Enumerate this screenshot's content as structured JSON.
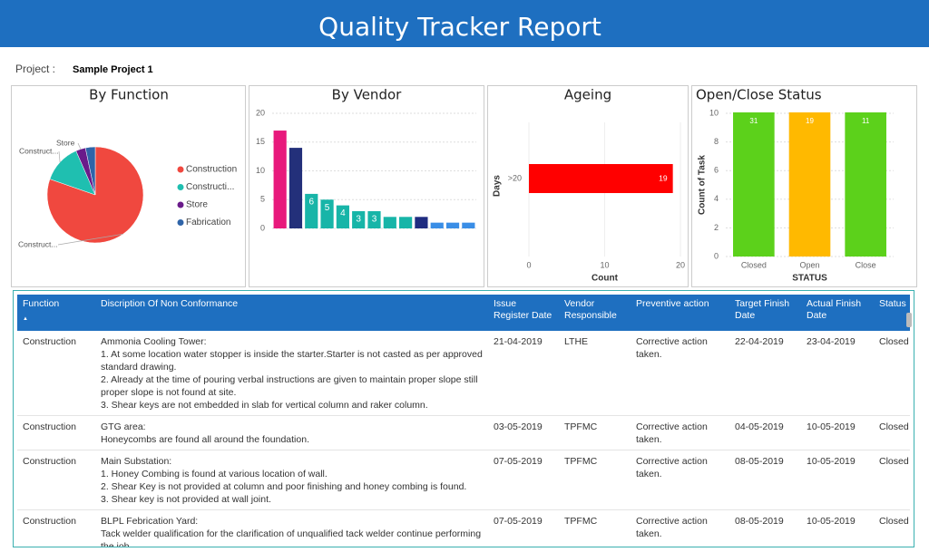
{
  "header": {
    "title": "Quality Tracker Report"
  },
  "project": {
    "label": "Project :",
    "value": "Sample Project 1"
  },
  "chart_data": [
    {
      "type": "pie",
      "title": "By Function",
      "categories": [
        "Construction",
        "Constructi...",
        "Store",
        "Fabrication"
      ],
      "values": [
        49,
        8,
        2,
        2
      ],
      "colors": [
        "#f0483f",
        "#1fbfb0",
        "#6a1b8a",
        "#2f64a8"
      ],
      "slice_labels": [
        "Construct...",
        "Construct...",
        "Store",
        null
      ],
      "legend": "right"
    },
    {
      "type": "bar",
      "title": "By Vendor",
      "categories": [
        null,
        null,
        null,
        null,
        null,
        null,
        null,
        null,
        null,
        null,
        null,
        null,
        null
      ],
      "values": [
        17,
        14,
        6,
        5,
        4,
        3,
        3,
        2,
        2,
        2,
        1,
        1,
        1
      ],
      "value_labels": [
        null,
        null,
        "6",
        "5",
        "4",
        "3",
        "3",
        null,
        null,
        null,
        null,
        null,
        null
      ],
      "colors": [
        "#e8197c",
        "#23307a",
        "#17b5a8",
        "#17b5a8",
        "#17b5a8",
        "#17b5a8",
        "#17b5a8",
        "#17b5a8",
        "#17b5a8",
        "#1f2c80",
        "#3a8ee6",
        "#3a8ee6",
        "#3a8ee6"
      ],
      "ylim": [
        0,
        20
      ],
      "yticks": [
        0,
        5,
        10,
        15,
        20
      ],
      "grid": true
    },
    {
      "type": "bar",
      "orientation": "horizontal",
      "title": "Ageing",
      "categories": [
        ">20"
      ],
      "values": [
        19
      ],
      "value_labels": [
        "19"
      ],
      "color": "#ff0000",
      "xlim": [
        0,
        20
      ],
      "xticks": [
        0,
        10,
        20
      ],
      "x_label": "Count",
      "y_label": "Days",
      "grid": true
    },
    {
      "type": "bar",
      "title": "Open/Close Status",
      "categories": [
        "Closed",
        "Open",
        "Close"
      ],
      "values": [
        31,
        19,
        11
      ],
      "value_labels": [
        "31",
        "19",
        "11"
      ],
      "colors": [
        "#5cd11b",
        "#ffb900",
        "#5cd11b"
      ],
      "ylim": [
        0,
        10
      ],
      "yticks": [
        0,
        2,
        4,
        6,
        8,
        10
      ],
      "x_label": "STATUS",
      "y_label": "Count of Task",
      "grid": true
    }
  ],
  "table": {
    "columns": [
      "Function",
      "Discription Of Non Conformance",
      "Issue Register Date",
      "Vendor Responsible",
      "Preventive action",
      "Target Finish Date",
      "Actual Finish Date",
      "Status"
    ],
    "rows": [
      [
        "Construction",
        [
          "Ammonia Cooling Tower:",
          "1. At some location water stopper is inside the starter.Starter is not casted as per approved standard drawing.",
          "2. Already at the time of pouring verbal instructions are given to maintain proper slope still proper slope is not found at site.",
          "3. Shear keys are not embedded in slab for vertical column and raker column."
        ],
        "21-04-2019",
        "LTHE",
        "Corrective action taken.",
        "22-04-2019",
        "23-04-2019",
        "Closed"
      ],
      [
        "Construction",
        [
          "GTG area:",
          "Honeycombs are found all around the foundation."
        ],
        "03-05-2019",
        "TPFMC",
        "Corrective action taken.",
        "04-05-2019",
        "10-05-2019",
        "Closed"
      ],
      [
        "Construction",
        [
          "Main Substation:",
          "1. Honey Combing is found at various location of wall.",
          "2. Shear Key is not provided at column and poor finishing and honey combing is found.",
          "3. Shear key is not provided at wall joint."
        ],
        "07-05-2019",
        "TPFMC",
        "Corrective action taken.",
        "08-05-2019",
        "10-05-2019",
        "Closed"
      ],
      [
        "Construction",
        [
          "BLPL Febrication Yard:",
          "Tack welder qualification for the clarification of unqualified tack welder continue performing the job"
        ],
        "07-05-2019",
        "TPFMC",
        "Corrective action taken.",
        "08-05-2019",
        "10-05-2019",
        "Closed"
      ]
    ]
  }
}
